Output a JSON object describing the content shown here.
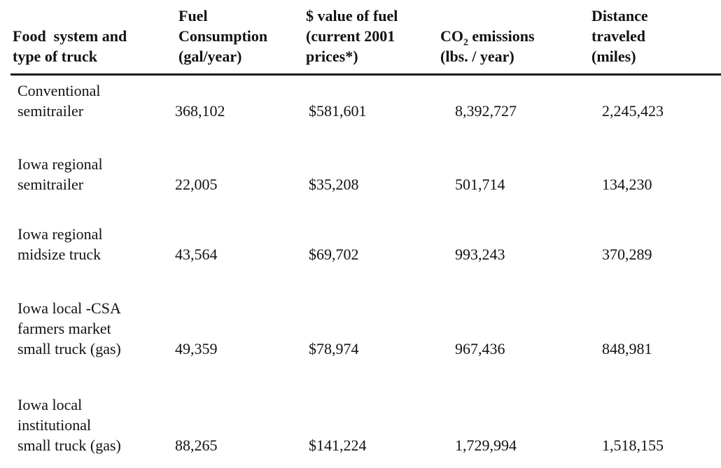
{
  "table": {
    "header": {
      "food_system": [
        "Food  system and",
        "type of truck"
      ],
      "fuel_consumption": [
        "Fuel",
        "Consumption",
        "(gal/year)"
      ],
      "fuel_value": [
        "$ value of fuel",
        "(current 2001",
        "prices*)"
      ],
      "co2": {
        "line1_pre": "CO",
        "line1_sub": "2",
        "line1_post": " emissions",
        "line2": "(lbs. / year)"
      },
      "distance": [
        "Distance",
        "traveled",
        "(miles)"
      ]
    },
    "rows": [
      {
        "label": [
          "Conventional",
          "semitrailer"
        ],
        "fuel_gal": "368,102",
        "fuel_value": "$581,601",
        "co2": "8,392,727",
        "distance": "2,245,423"
      },
      {
        "label": [
          "Iowa regional",
          "semitrailer"
        ],
        "fuel_gal": "22,005",
        "fuel_value": "$35,208",
        "co2": "501,714",
        "distance": "134,230"
      },
      {
        "label": [
          "Iowa regional",
          "midsize truck"
        ],
        "fuel_gal": "43,564",
        "fuel_value": "$69,702",
        "co2": "993,243",
        "distance": "370,289"
      },
      {
        "label": [
          "Iowa local -CSA",
          "farmers market",
          "small truck (gas)"
        ],
        "fuel_gal": "49,359",
        "fuel_value": "$78,974",
        "co2": "967,436",
        "distance": "848,981"
      },
      {
        "label": [
          "Iowa local",
          "institutional",
          "small truck (gas)"
        ],
        "fuel_gal": "88,265",
        "fuel_value": "$141,224",
        "co2": "1,729,994",
        "distance": "1,518,155"
      }
    ]
  },
  "chart_data": {
    "type": "table",
    "columns": [
      "Food system and type of truck",
      "Fuel Consumption (gal/year)",
      "$ value of fuel (current 2001 prices*)",
      "CO2 emissions (lbs. / year)",
      "Distance traveled (miles)"
    ],
    "rows": [
      [
        "Conventional semitrailer",
        368102,
        581601,
        8392727,
        2245423
      ],
      [
        "Iowa regional semitrailer",
        22005,
        35208,
        501714,
        134230
      ],
      [
        "Iowa regional midsize truck",
        43564,
        69702,
        993243,
        370289
      ],
      [
        "Iowa local -CSA farmers market small truck (gas)",
        49359,
        78974,
        967436,
        848981
      ],
      [
        "Iowa local institutional small truck (gas)",
        88265,
        141224,
        1729994,
        1518155
      ]
    ]
  }
}
